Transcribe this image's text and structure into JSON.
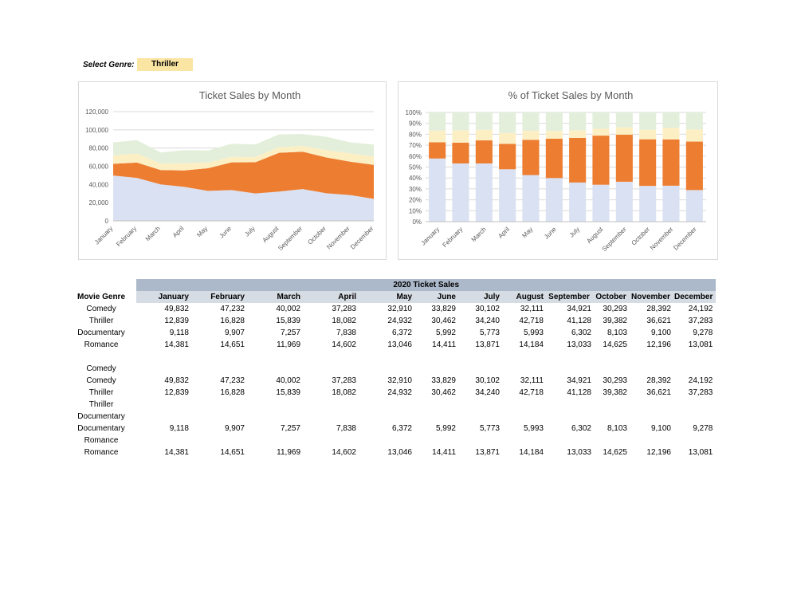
{
  "selector": {
    "label": "Select Genre:",
    "value": "Thriller"
  },
  "colors": {
    "comedy": "#dae1f2",
    "thriller": "#ed7d31",
    "documentary": "#fdefc4",
    "romance": "#e3efdb"
  },
  "table": {
    "title": "2020 Ticket Sales",
    "genre_header": "Movie Genre",
    "months": [
      "January",
      "February",
      "March",
      "April",
      "May",
      "June",
      "July",
      "August",
      "September",
      "October",
      "November",
      "December"
    ],
    "rows": [
      {
        "genre": "Comedy",
        "values": [
          "49,832",
          "47,232",
          "40,002",
          "37,283",
          "32,910",
          "33,829",
          "30,102",
          "32,111",
          "34,921",
          "30,293",
          "28,392",
          "24,192"
        ]
      },
      {
        "genre": "Thriller",
        "values": [
          "12,839",
          "16,828",
          "15,839",
          "18,082",
          "24,932",
          "30,462",
          "34,240",
          "42,718",
          "41,128",
          "39,382",
          "36,621",
          "37,283"
        ]
      },
      {
        "genre": "Documentary",
        "values": [
          "9,118",
          "9,907",
          "7,257",
          "7,838",
          "6,372",
          "5,992",
          "5,773",
          "5,993",
          "6,302",
          "8,103",
          "9,100",
          "9,278"
        ]
      },
      {
        "genre": "Romance",
        "values": [
          "14,381",
          "14,651",
          "11,969",
          "14,602",
          "13,046",
          "14,411",
          "13,871",
          "14,184",
          "13,033",
          "14,625",
          "12,196",
          "13,081"
        ]
      }
    ],
    "helper_rows": [
      {
        "genre": "Comedy"
      },
      {
        "genre": "Comedy",
        "values": [
          "49,832",
          "47,232",
          "40,002",
          "37,283",
          "32,910",
          "33,829",
          "30,102",
          "32,111",
          "34,921",
          "30,293",
          "28,392",
          "24,192"
        ]
      },
      {
        "genre": "Thriller",
        "values": [
          "12,839",
          "16,828",
          "15,839",
          "18,082",
          "24,932",
          "30,462",
          "34,240",
          "42,718",
          "41,128",
          "39,382",
          "36,621",
          "37,283"
        ]
      },
      {
        "genre": "Thriller"
      },
      {
        "genre": "Documentary"
      },
      {
        "genre": "Documentary",
        "values": [
          "9,118",
          "9,907",
          "7,257",
          "7,838",
          "6,372",
          "5,992",
          "5,773",
          "5,993",
          "6,302",
          "8,103",
          "9,100",
          "9,278"
        ]
      },
      {
        "genre": "Romance"
      },
      {
        "genre": "Romance",
        "values": [
          "14,381",
          "14,651",
          "11,969",
          "14,602",
          "13,046",
          "14,411",
          "13,871",
          "14,184",
          "13,033",
          "14,625",
          "12,196",
          "13,081"
        ]
      }
    ]
  },
  "chart_data": [
    {
      "type": "area",
      "stacked": true,
      "title": "Ticket Sales by Month",
      "categories": [
        "January",
        "February",
        "March",
        "April",
        "May",
        "June",
        "July",
        "August",
        "September",
        "October",
        "November",
        "December"
      ],
      "ylim": [
        0,
        120000
      ],
      "yticks": [
        "0",
        "20,000",
        "40,000",
        "60,000",
        "80,000",
        "100,000",
        "120,000"
      ],
      "grid": true,
      "legend": "none",
      "series": [
        {
          "values": [
            49832,
            47232,
            40002,
            37283,
            32910,
            33829,
            30102,
            32111,
            34921,
            30293,
            28392,
            24192
          ]
        },
        {
          "values": [
            12839,
            16828,
            15839,
            18082,
            24932,
            30462,
            34240,
            42718,
            41128,
            39382,
            36621,
            37283
          ]
        },
        {
          "values": [
            9118,
            9907,
            7257,
            7838,
            6372,
            5992,
            5773,
            5993,
            6302,
            8103,
            9100,
            9278
          ]
        },
        {
          "values": [
            14381,
            14651,
            11969,
            14602,
            13046,
            14411,
            13871,
            14184,
            13033,
            14625,
            12196,
            13081
          ]
        }
      ]
    },
    {
      "type": "bar",
      "stacked": "percent",
      "title": "%  of Ticket Sales by Month",
      "categories": [
        "January",
        "February",
        "March",
        "April",
        "May",
        "June",
        "July",
        "August",
        "September",
        "October",
        "November",
        "December"
      ],
      "ylim": [
        0,
        100
      ],
      "yticks": [
        "0%",
        "10%",
        "20%",
        "30%",
        "40%",
        "50%",
        "60%",
        "70%",
        "80%",
        "90%",
        "100%"
      ],
      "grid": true,
      "legend": "none",
      "series": [
        {
          "values": [
            49832,
            47232,
            40002,
            37283,
            32910,
            33829,
            30102,
            32111,
            34921,
            30293,
            28392,
            24192
          ]
        },
        {
          "values": [
            12839,
            16828,
            15839,
            18082,
            24932,
            30462,
            34240,
            42718,
            41128,
            39382,
            36621,
            37283
          ]
        },
        {
          "values": [
            9118,
            9907,
            7257,
            7838,
            6372,
            5992,
            5773,
            5993,
            6302,
            8103,
            9100,
            9278
          ]
        },
        {
          "values": [
            14381,
            14651,
            11969,
            14602,
            13046,
            14411,
            13871,
            14184,
            13033,
            14625,
            12196,
            13081
          ]
        }
      ]
    }
  ]
}
